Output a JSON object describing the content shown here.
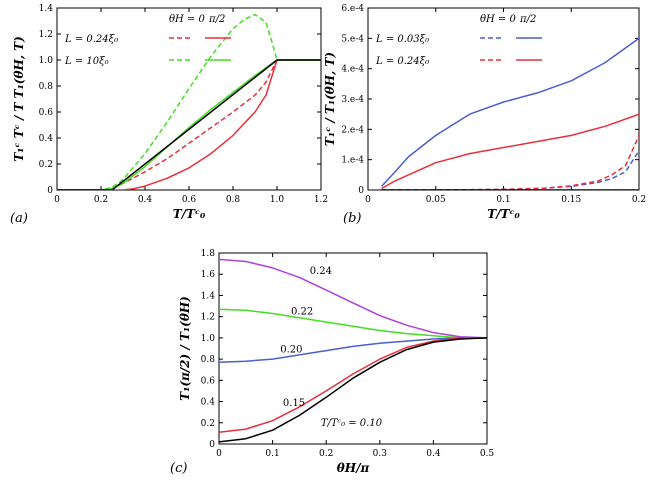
{
  "chart_data": [
    {
      "type": "line",
      "panel_label": "(a)",
      "xlabel": "T/Tᶜ₀",
      "ylabel": "T₁ᶜ Tᶜ / T T₁(θH, T)",
      "xlim": [
        0,
        1.2
      ],
      "ylim": [
        0,
        1.4
      ],
      "xticks": [
        "0",
        "0.2",
        "0.4",
        "0.6",
        "0.8",
        "1.0",
        "1.2"
      ],
      "yticks": [
        "0",
        "0.2",
        "0.4",
        "0.6",
        "0.8",
        "1.0",
        "1.2",
        "1.4"
      ],
      "legend_header": [
        "θH = 0",
        "π/2"
      ],
      "legend_rows": [
        "L = 0.24ξ₀",
        "L = 10ξ₀"
      ],
      "series": [
        {
          "name": "L = 0.24ξ0, θH = 0",
          "color": "#e8303a",
          "dash": true,
          "x": [
            0,
            0.2,
            0.25,
            0.3,
            0.4,
            0.5,
            0.6,
            0.7,
            0.8,
            0.9,
            0.95,
            1.0,
            1.2
          ],
          "y": [
            0,
            0,
            0.01,
            0.05,
            0.14,
            0.24,
            0.36,
            0.48,
            0.6,
            0.73,
            0.83,
            1.0,
            1.0
          ]
        },
        {
          "name": "L = 0.24ξ0, θH = π/2",
          "color": "#e8303a",
          "dash": false,
          "x": [
            0,
            0.3,
            0.35,
            0.4,
            0.5,
            0.6,
            0.7,
            0.8,
            0.9,
            0.95,
            1.0,
            1.2
          ],
          "y": [
            0,
            0,
            0.01,
            0.03,
            0.09,
            0.17,
            0.28,
            0.42,
            0.6,
            0.73,
            1.0,
            1.0
          ]
        },
        {
          "name": "L = 10ξ0, θH = 0",
          "color": "#44dd22",
          "dash": true,
          "x": [
            0,
            0.2,
            0.25,
            0.3,
            0.4,
            0.5,
            0.6,
            0.7,
            0.8,
            0.85,
            0.9,
            0.95,
            0.98,
            1.0,
            1.2
          ],
          "y": [
            0,
            0,
            0.02,
            0.08,
            0.28,
            0.52,
            0.78,
            1.03,
            1.24,
            1.31,
            1.35,
            1.29,
            1.12,
            1.0,
            1.0
          ]
        },
        {
          "name": "L = 10ξ0, θH = π/2",
          "color": "#44dd22",
          "dash": false,
          "x": [
            0,
            0.2,
            0.25,
            0.3,
            0.4,
            0.5,
            0.6,
            0.7,
            0.8,
            0.9,
            1.0,
            1.2
          ],
          "y": [
            0,
            0,
            0.01,
            0.05,
            0.18,
            0.33,
            0.48,
            0.62,
            0.75,
            0.88,
            1.0,
            1.0
          ]
        },
        {
          "name": "normal state",
          "color": "#000000",
          "dash": false,
          "x": [
            0,
            0.25,
            1.0,
            1.2
          ],
          "y": [
            0,
            0,
            1.0,
            1.0
          ]
        }
      ]
    },
    {
      "type": "line",
      "panel_label": "(b)",
      "xlabel": "T/Tᶜ₀",
      "ylabel": "T₁ᶜ / T₁(θH, T)",
      "xlim": [
        0,
        0.2
      ],
      "ylim": [
        0,
        0.0006
      ],
      "xticks": [
        "0",
        "0.05",
        "0.1",
        "0.15",
        "0.2"
      ],
      "yticks": [
        "0",
        "1.e-4",
        "2.e-4",
        "3.e-4",
        "4.e-4",
        "5.e-4",
        "6.e-4"
      ],
      "legend_header": [
        "θH = 0",
        "π/2"
      ],
      "legend_rows": [
        "L = 0.03ξ₀",
        "L = 0.24ξ₀"
      ],
      "series": [
        {
          "name": "L = 0.03ξ0, θH = 0",
          "color": "#4a5fd0",
          "dash": true,
          "x": [
            0.01,
            0.05,
            0.1,
            0.13,
            0.15,
            0.17,
            0.18,
            0.19,
            0.2
          ],
          "y": [
            0,
            0,
            2e-06,
            6e-06,
            1.2e-05,
            2.5e-05,
            3.8e-05,
            6e-05,
            0.00013
          ]
        },
        {
          "name": "L = 0.03ξ0, θH = π/2",
          "color": "#4a5fd0",
          "dash": false,
          "x": [
            0.01,
            0.02,
            0.03,
            0.05,
            0.075,
            0.1,
            0.125,
            0.15,
            0.175,
            0.2
          ],
          "y": [
            1.2e-05,
            6e-05,
            0.00011,
            0.00018,
            0.00025,
            0.00029,
            0.00032,
            0.00036,
            0.00042,
            0.0005
          ]
        },
        {
          "name": "L = 0.24ξ0, θH = 0",
          "color": "#e8303a",
          "dash": true,
          "x": [
            0.01,
            0.05,
            0.1,
            0.13,
            0.15,
            0.17,
            0.18,
            0.19,
            0.2
          ],
          "y": [
            0,
            0,
            2e-06,
            6e-06,
            1.4e-05,
            3e-05,
            5e-05,
            8e-05,
            0.00018
          ]
        },
        {
          "name": "L = 0.24ξ0, θH = π/2",
          "color": "#e8303a",
          "dash": false,
          "x": [
            0.01,
            0.02,
            0.03,
            0.05,
            0.075,
            0.1,
            0.125,
            0.15,
            0.175,
            0.2
          ],
          "y": [
            5e-06,
            3e-05,
            5e-05,
            9e-05,
            0.00012,
            0.00014,
            0.00016,
            0.00018,
            0.00021,
            0.00025
          ]
        },
        {
          "name": "normal state",
          "color": "#000000",
          "dash": false,
          "x": [
            0.01,
            0.2
          ],
          "y": [
            0,
            0
          ]
        }
      ]
    },
    {
      "type": "line",
      "panel_label": "(c)",
      "xlabel": "θH/π",
      "ylabel": "T₁(π/2) / T₁(θH)",
      "xlim": [
        0,
        0.5
      ],
      "ylim": [
        0,
        1.8
      ],
      "xticks": [
        "0",
        "0.1",
        "0.2",
        "0.3",
        "0.4",
        "0.5"
      ],
      "yticks": [
        "0",
        "0.2",
        "0.4",
        "0.6",
        "0.8",
        "1.0",
        "1.2",
        "1.4",
        "1.6",
        "1.8"
      ],
      "series": [
        {
          "name": "0.24",
          "label": "0.24",
          "color": "#b040dd",
          "dash": false,
          "x": [
            0,
            0.05,
            0.1,
            0.15,
            0.2,
            0.25,
            0.3,
            0.35,
            0.4,
            0.45,
            0.5
          ],
          "y": [
            1.74,
            1.72,
            1.66,
            1.57,
            1.45,
            1.33,
            1.21,
            1.12,
            1.05,
            1.01,
            1.0
          ]
        },
        {
          "name": "0.22",
          "label": "0.22",
          "color": "#44dd22",
          "dash": false,
          "x": [
            0,
            0.05,
            0.1,
            0.15,
            0.2,
            0.25,
            0.3,
            0.35,
            0.4,
            0.45,
            0.5
          ],
          "y": [
            1.27,
            1.26,
            1.23,
            1.19,
            1.15,
            1.11,
            1.07,
            1.04,
            1.02,
            1.0,
            1.0
          ]
        },
        {
          "name": "0.20",
          "label": "0.20",
          "color": "#4a5fd0",
          "dash": false,
          "x": [
            0,
            0.05,
            0.1,
            0.15,
            0.2,
            0.25,
            0.3,
            0.35,
            0.4,
            0.45,
            0.5
          ],
          "y": [
            0.77,
            0.78,
            0.8,
            0.84,
            0.88,
            0.92,
            0.95,
            0.97,
            0.99,
            1.0,
            1.0
          ]
        },
        {
          "name": "0.15",
          "label": "0.15",
          "color": "#e8303a",
          "dash": false,
          "x": [
            0,
            0.05,
            0.1,
            0.15,
            0.2,
            0.25,
            0.3,
            0.35,
            0.4,
            0.45,
            0.5
          ],
          "y": [
            0.11,
            0.14,
            0.22,
            0.35,
            0.5,
            0.66,
            0.8,
            0.91,
            0.97,
            1.0,
            1.0
          ]
        },
        {
          "name": "T/Tc0 = 0.10",
          "label": "T/Tᶜ₀ = 0.10",
          "color": "#000000",
          "dash": false,
          "x": [
            0,
            0.05,
            0.1,
            0.15,
            0.2,
            0.25,
            0.3,
            0.35,
            0.4,
            0.45,
            0.5
          ],
          "y": [
            0.02,
            0.05,
            0.13,
            0.27,
            0.44,
            0.62,
            0.77,
            0.89,
            0.96,
            0.99,
            1.0
          ]
        }
      ]
    }
  ]
}
